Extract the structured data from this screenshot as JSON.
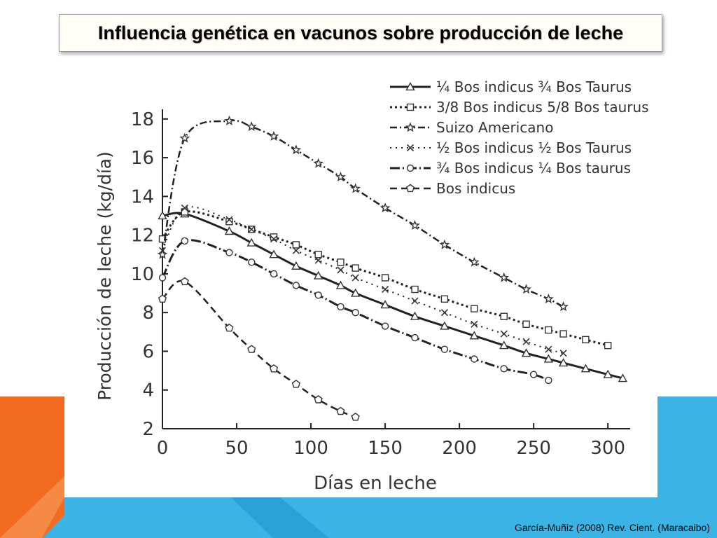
{
  "title": "Influencia genética en vacunos sobre producción de leche",
  "citation": "García-Muñiz (2008) Rev. Cient. (Maracaibo)",
  "colors": {
    "orange": "#f26b21",
    "blue": "#3bb4e5",
    "dark_blue": "#2aa0d6",
    "ink": "#111111"
  },
  "chart_data": {
    "type": "line",
    "xlabel": "Días en leche",
    "ylabel": "Producción de leche (kg/día)",
    "xlim": [
      0,
      315
    ],
    "ylim": [
      2,
      18.5
    ],
    "x_ticks": [
      0,
      50,
      100,
      150,
      200,
      250,
      300
    ],
    "y_ticks": [
      2,
      4,
      6,
      8,
      10,
      12,
      14,
      16,
      18
    ],
    "grid": false,
    "legend_position": "top-right",
    "series": [
      {
        "name": "¼ Bos indicus ¾ Bos Taurus",
        "marker": "triangle",
        "dash": "solid",
        "points": [
          [
            0,
            13.0
          ],
          [
            15,
            13.1
          ],
          [
            45,
            12.2
          ],
          [
            60,
            11.6
          ],
          [
            75,
            11.0
          ],
          [
            90,
            10.4
          ],
          [
            105,
            9.9
          ],
          [
            120,
            9.4
          ],
          [
            130,
            9.0
          ],
          [
            150,
            8.4
          ],
          [
            170,
            7.8
          ],
          [
            190,
            7.3
          ],
          [
            210,
            6.8
          ],
          [
            230,
            6.3
          ],
          [
            245,
            5.9
          ],
          [
            260,
            5.6
          ],
          [
            270,
            5.4
          ],
          [
            285,
            5.1
          ],
          [
            300,
            4.8
          ],
          [
            310,
            4.6
          ]
        ]
      },
      {
        "name": "3/8 Bos indicus 5/8 Bos taurus",
        "marker": "square",
        "dash": "dotted",
        "points": [
          [
            0,
            11.8
          ],
          [
            15,
            13.2
          ],
          [
            45,
            12.7
          ],
          [
            60,
            12.3
          ],
          [
            75,
            11.9
          ],
          [
            90,
            11.5
          ],
          [
            105,
            11.0
          ],
          [
            120,
            10.6
          ],
          [
            130,
            10.3
          ],
          [
            150,
            9.8
          ],
          [
            170,
            9.2
          ],
          [
            190,
            8.7
          ],
          [
            210,
            8.2
          ],
          [
            230,
            7.8
          ],
          [
            245,
            7.4
          ],
          [
            260,
            7.1
          ],
          [
            270,
            6.9
          ],
          [
            285,
            6.6
          ],
          [
            300,
            6.3
          ]
        ]
      },
      {
        "name": "Suizo Americano",
        "marker": "star",
        "dash": "dashdot",
        "points": [
          [
            0,
            11.0
          ],
          [
            15,
            17.0
          ],
          [
            45,
            17.9
          ],
          [
            60,
            17.6
          ],
          [
            75,
            17.1
          ],
          [
            90,
            16.4
          ],
          [
            105,
            15.7
          ],
          [
            120,
            15.0
          ],
          [
            130,
            14.4
          ],
          [
            150,
            13.4
          ],
          [
            170,
            12.5
          ],
          [
            190,
            11.5
          ],
          [
            210,
            10.6
          ],
          [
            230,
            9.8
          ],
          [
            245,
            9.2
          ],
          [
            260,
            8.7
          ],
          [
            270,
            8.3
          ]
        ]
      },
      {
        "name": "½ Bos indicus ½ Bos Taurus",
        "marker": "cross",
        "dash": "sparse-dot",
        "points": [
          [
            0,
            11.2
          ],
          [
            15,
            13.4
          ],
          [
            45,
            12.8
          ],
          [
            60,
            12.3
          ],
          [
            75,
            11.8
          ],
          [
            90,
            11.2
          ],
          [
            105,
            10.7
          ],
          [
            120,
            10.2
          ],
          [
            130,
            9.8
          ],
          [
            150,
            9.2
          ],
          [
            170,
            8.6
          ],
          [
            190,
            8.0
          ],
          [
            210,
            7.4
          ],
          [
            230,
            6.9
          ],
          [
            245,
            6.5
          ],
          [
            260,
            6.1
          ],
          [
            270,
            5.9
          ]
        ]
      },
      {
        "name": "¾ Bos indicus ¼ Bos taurus",
        "marker": "circle",
        "dash": "longdashdot",
        "points": [
          [
            0,
            9.8
          ],
          [
            15,
            11.7
          ],
          [
            45,
            11.1
          ],
          [
            60,
            10.6
          ],
          [
            75,
            10.0
          ],
          [
            90,
            9.4
          ],
          [
            105,
            8.9
          ],
          [
            120,
            8.3
          ],
          [
            130,
            8.0
          ],
          [
            150,
            7.3
          ],
          [
            170,
            6.7
          ],
          [
            190,
            6.1
          ],
          [
            210,
            5.6
          ],
          [
            230,
            5.1
          ],
          [
            250,
            4.8
          ],
          [
            260,
            4.5
          ]
        ]
      },
      {
        "name": "Bos indicus",
        "marker": "pentagon",
        "dash": "dashed",
        "points": [
          [
            0,
            8.7
          ],
          [
            15,
            9.6
          ],
          [
            45,
            7.2
          ],
          [
            60,
            6.1
          ],
          [
            75,
            5.1
          ],
          [
            90,
            4.3
          ],
          [
            105,
            3.5
          ],
          [
            120,
            2.9
          ],
          [
            130,
            2.6
          ]
        ]
      }
    ]
  }
}
